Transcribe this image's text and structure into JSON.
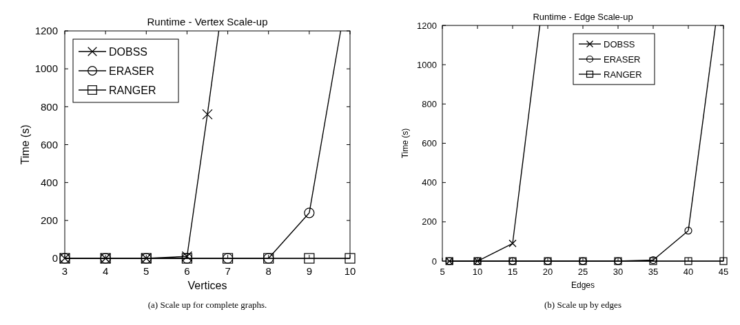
{
  "chart_data": [
    {
      "type": "line",
      "title": "Runtime - Vertex Scale-up",
      "xlabel": "Vertices",
      "ylabel": "Time (s)",
      "xlim": [
        3,
        10
      ],
      "xticks": [
        3,
        4,
        5,
        6,
        7,
        8,
        9,
        10
      ],
      "ylim": [
        0,
        1200
      ],
      "yticks": [
        0,
        200,
        400,
        600,
        800,
        1000,
        1200
      ],
      "legend": "top left",
      "annotations": [
        "(a)  Scale up for complete graphs."
      ],
      "series": [
        {
          "name": "DOBSS",
          "color": "#000000",
          "marker": "cross",
          "x": [
            3,
            4,
            5,
            6,
            6.5
          ],
          "values": [
            0,
            0,
            0,
            10,
            760
          ]
        },
        {
          "color": "#000000",
          "marker": "none",
          "x": [
            6.5,
            6.78
          ],
          "values": [
            760,
            1200
          ]
        },
        {
          "name": "ERASER",
          "color": "#000000",
          "marker": "circle",
          "x": [
            3,
            4,
            5,
            6,
            7,
            8,
            9
          ],
          "values": [
            0,
            0,
            0,
            0,
            0,
            0,
            240
          ]
        },
        {
          "color": "#000000",
          "marker": "none",
          "x": [
            9,
            9.77
          ],
          "values": [
            240,
            1200
          ]
        },
        {
          "name": "RANGER",
          "color": "#000000",
          "marker": "square",
          "x": [
            3,
            4,
            5,
            6,
            7,
            8,
            9,
            10
          ],
          "values": [
            0,
            0,
            0,
            0,
            0,
            0,
            0,
            0
          ]
        }
      ]
    },
    {
      "type": "line",
      "title": "Runtime - Edge Scale-up",
      "xlabel": "Edges",
      "ylabel": "Time (s)",
      "xlim": [
        5,
        45
      ],
      "xticks": [
        5,
        10,
        15,
        20,
        25,
        30,
        35,
        40,
        45
      ],
      "ylim": [
        0,
        1200
      ],
      "yticks": [
        0,
        200,
        400,
        600,
        800,
        1000,
        1200
      ],
      "legend": "top right",
      "annotations": [
        "(b)  Scale up by edges"
      ],
      "series": [
        {
          "name": "DOBSS",
          "color": "#000000",
          "marker": "cross",
          "x": [
            6,
            10,
            15
          ],
          "values": [
            0,
            0,
            90
          ]
        },
        {
          "color": "#000000",
          "marker": "none",
          "x": [
            15,
            18.87
          ],
          "values": [
            90,
            1200
          ]
        },
        {
          "name": "ERASER",
          "color": "#000000",
          "marker": "circle",
          "x": [
            6,
            10,
            15,
            20,
            25,
            30,
            35,
            40
          ],
          "values": [
            0,
            0,
            0,
            0,
            0,
            0,
            5,
            155
          ]
        },
        {
          "color": "#000000",
          "marker": "none",
          "x": [
            40,
            43.87
          ],
          "values": [
            155,
            1200
          ]
        },
        {
          "name": "RANGER",
          "color": "#000000",
          "marker": "square",
          "x": [
            6,
            10,
            15,
            20,
            25,
            30,
            35,
            40,
            45
          ],
          "values": [
            0,
            0,
            0,
            0,
            0,
            0,
            0,
            0,
            0
          ]
        }
      ]
    }
  ]
}
